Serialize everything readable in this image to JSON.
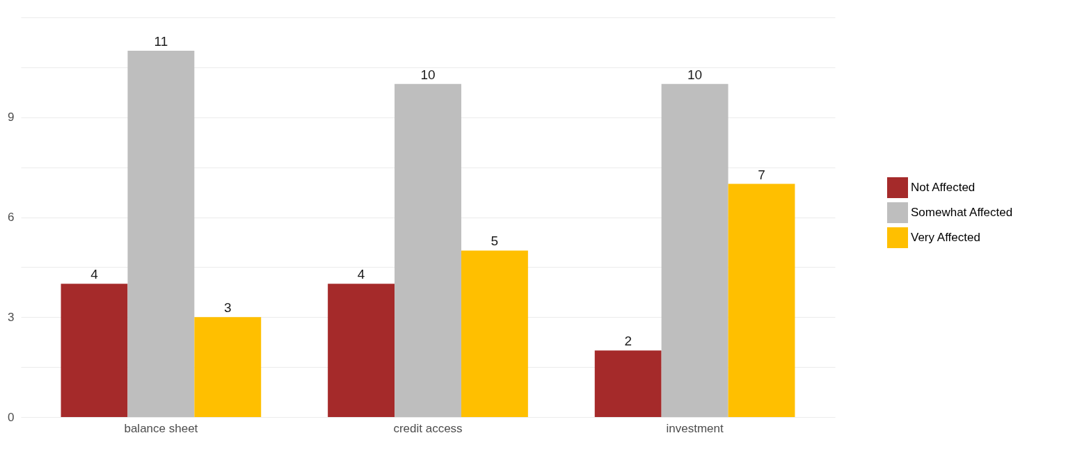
{
  "chart_data": {
    "type": "bar",
    "categories": [
      "balance sheet",
      "credit access",
      "investment"
    ],
    "series": [
      {
        "name": "Not Affected",
        "color": "#a52a2a",
        "values": [
          4,
          4,
          2
        ]
      },
      {
        "name": "Somewhat Affected",
        "color": "#bebebe",
        "values": [
          11,
          10,
          10
        ]
      },
      {
        "name": "Very Affected",
        "color": "#ffbf00",
        "values": [
          3,
          5,
          7
        ]
      }
    ],
    "ylim": [
      0,
      12
    ],
    "yticks": [
      0,
      {
        "value": 1.5,
        "label": null
      },
      3,
      {
        "value": 4.5,
        "label": null
      },
      6,
      {
        "value": 7.5,
        "label": null
      },
      9,
      {
        "value": 10.5,
        "label": null
      },
      {
        "value": 12,
        "label": null
      }
    ],
    "grid": "y",
    "legend": "right",
    "data_labels": true
  }
}
